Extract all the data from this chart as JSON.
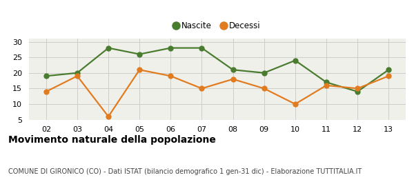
{
  "years": [
    "02",
    "03",
    "04",
    "05",
    "06",
    "07",
    "08",
    "09",
    "10",
    "11",
    "12",
    "13"
  ],
  "nascite": [
    19,
    20,
    28,
    26,
    28,
    28,
    21,
    20,
    24,
    17,
    14,
    21
  ],
  "decessi": [
    14,
    19,
    6,
    21,
    19,
    15,
    18,
    15,
    10,
    16,
    15,
    19
  ],
  "nascite_color": "#4a7c2f",
  "decessi_color": "#e07b20",
  "plot_bg_color": "#f0f0eb",
  "fig_bg_color": "#ffffff",
  "grid_color": "#cccccc",
  "ylim": [
    5,
    31
  ],
  "yticks": [
    5,
    10,
    15,
    20,
    25,
    30
  ],
  "title": "Movimento naturale della popolazione",
  "subtitle": "COMUNE DI GIRONICO (CO) - Dati ISTAT (bilancio demografico 1 gen-31 dic) - Elaborazione TUTTITALIA.IT",
  "legend_nascite": "Nascite",
  "legend_decessi": "Decessi",
  "title_fontsize": 10,
  "subtitle_fontsize": 7,
  "tick_fontsize": 8,
  "marker_size": 5,
  "line_width": 1.6
}
